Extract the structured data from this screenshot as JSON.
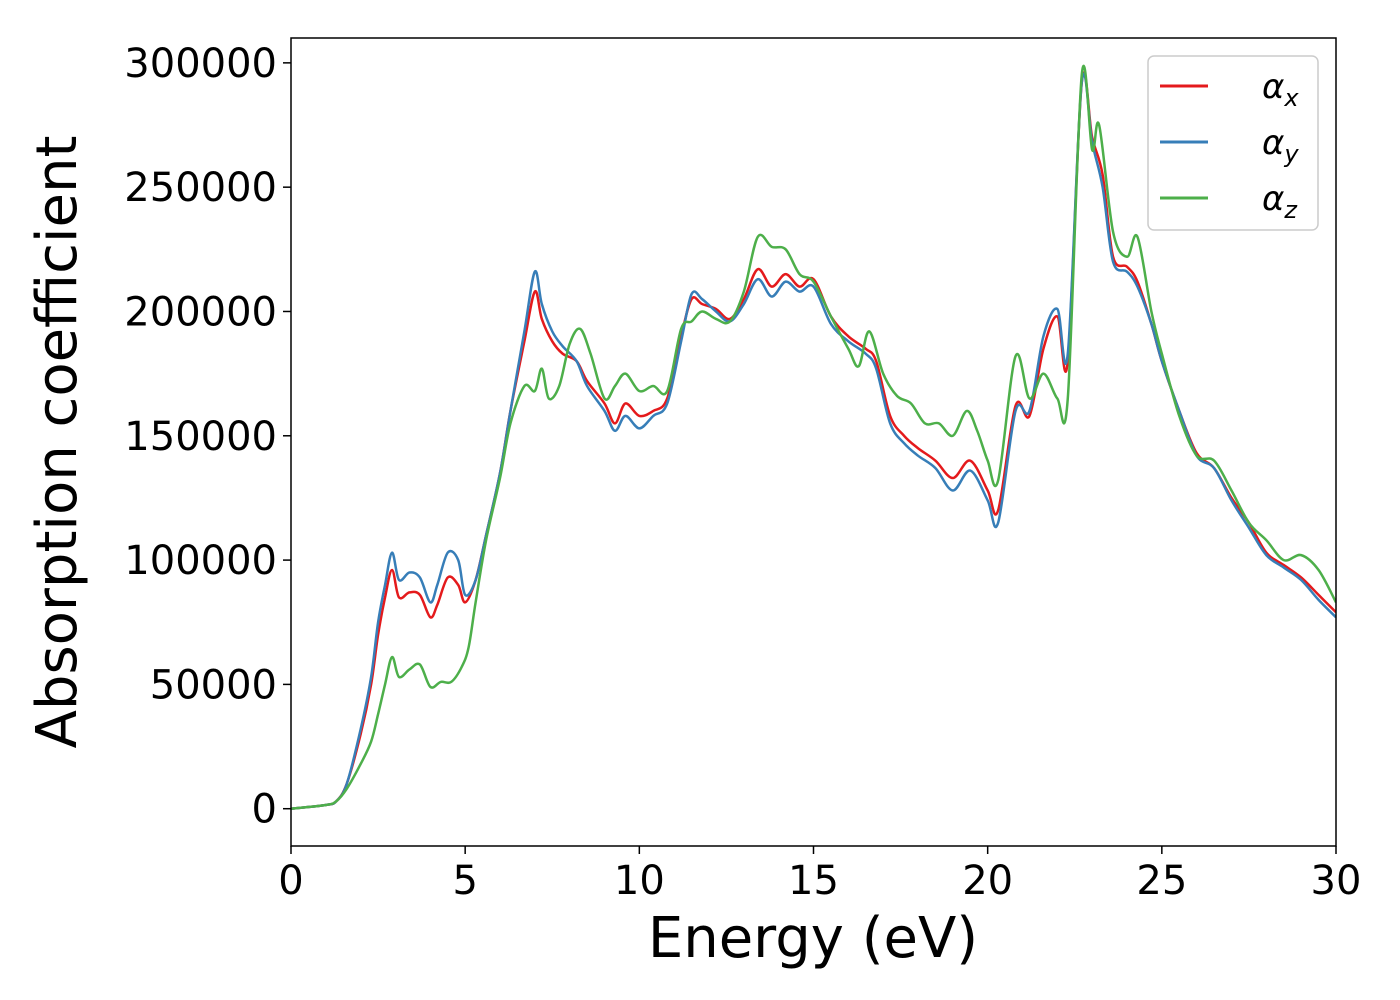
{
  "chart_data": {
    "type": "line",
    "title": "",
    "xlabel": "Energy (eV)",
    "ylabel": "Absorption coefficient",
    "xlim": [
      0,
      30
    ],
    "ylim": [
      -15000,
      310000
    ],
    "xticks": [
      0,
      5,
      10,
      15,
      20,
      25,
      30
    ],
    "yticks": [
      0,
      50000,
      100000,
      150000,
      200000,
      250000,
      300000
    ],
    "grid": false,
    "legend_position": "top-right",
    "series": [
      {
        "name": "αx",
        "symbol": "α",
        "subscript": "x",
        "color": "#e41a1c",
        "points": [
          [
            0,
            0
          ],
          [
            1,
            1500
          ],
          [
            1.3,
            3000
          ],
          [
            1.6,
            10000
          ],
          [
            2,
            30000
          ],
          [
            2.3,
            50000
          ],
          [
            2.5,
            70000
          ],
          [
            2.7,
            85000
          ],
          [
            2.9,
            96000
          ],
          [
            3.1,
            85000
          ],
          [
            3.4,
            87000
          ],
          [
            3.7,
            86000
          ],
          [
            4,
            77000
          ],
          [
            4.2,
            82000
          ],
          [
            4.5,
            93000
          ],
          [
            4.8,
            90000
          ],
          [
            5,
            83000
          ],
          [
            5.3,
            92000
          ],
          [
            5.6,
            110000
          ],
          [
            6,
            135000
          ],
          [
            6.3,
            160000
          ],
          [
            6.7,
            188000
          ],
          [
            7,
            208000
          ],
          [
            7.2,
            197000
          ],
          [
            7.5,
            188000
          ],
          [
            7.8,
            183000
          ],
          [
            8.2,
            180000
          ],
          [
            8.5,
            172000
          ],
          [
            9,
            163000
          ],
          [
            9.3,
            155000
          ],
          [
            9.6,
            163000
          ],
          [
            10,
            158000
          ],
          [
            10.4,
            160000
          ],
          [
            10.8,
            165000
          ],
          [
            11.2,
            190000
          ],
          [
            11.5,
            205000
          ],
          [
            11.8,
            203000
          ],
          [
            12.2,
            201000
          ],
          [
            12.6,
            197000
          ],
          [
            13,
            205000
          ],
          [
            13.4,
            217000
          ],
          [
            13.8,
            210000
          ],
          [
            14.2,
            215000
          ],
          [
            14.6,
            210000
          ],
          [
            15,
            213000
          ],
          [
            15.5,
            198000
          ],
          [
            16,
            190000
          ],
          [
            16.5,
            185000
          ],
          [
            16.8,
            180000
          ],
          [
            17.2,
            158000
          ],
          [
            17.6,
            150000
          ],
          [
            18,
            145000
          ],
          [
            18.5,
            140000
          ],
          [
            19,
            133000
          ],
          [
            19.5,
            140000
          ],
          [
            20,
            128000
          ],
          [
            20.3,
            120000
          ],
          [
            20.8,
            162000
          ],
          [
            21.2,
            158000
          ],
          [
            21.6,
            185000
          ],
          [
            22,
            198000
          ],
          [
            22.3,
            180000
          ],
          [
            22.7,
            292000
          ],
          [
            23,
            270000
          ],
          [
            23.3,
            255000
          ],
          [
            23.6,
            222000
          ],
          [
            24,
            218000
          ],
          [
            24.3,
            212000
          ],
          [
            24.7,
            195000
          ],
          [
            25,
            180000
          ],
          [
            25.5,
            160000
          ],
          [
            26,
            143000
          ],
          [
            26.5,
            137000
          ],
          [
            27,
            125000
          ],
          [
            27.5,
            115000
          ],
          [
            28,
            103000
          ],
          [
            28.5,
            98000
          ],
          [
            29,
            93000
          ],
          [
            29.5,
            86000
          ],
          [
            30,
            79000
          ]
        ]
      },
      {
        "name": "αy",
        "symbol": "α",
        "subscript": "y",
        "color": "#377eb8",
        "points": [
          [
            0,
            0
          ],
          [
            1,
            1500
          ],
          [
            1.3,
            3000
          ],
          [
            1.6,
            10000
          ],
          [
            2,
            32000
          ],
          [
            2.3,
            53000
          ],
          [
            2.5,
            75000
          ],
          [
            2.7,
            90000
          ],
          [
            2.9,
            103000
          ],
          [
            3.1,
            92000
          ],
          [
            3.4,
            95000
          ],
          [
            3.7,
            93000
          ],
          [
            4,
            83000
          ],
          [
            4.2,
            90000
          ],
          [
            4.5,
            103000
          ],
          [
            4.8,
            100000
          ],
          [
            5,
            86000
          ],
          [
            5.3,
            92000
          ],
          [
            5.6,
            110000
          ],
          [
            6,
            135000
          ],
          [
            6.3,
            160000
          ],
          [
            6.7,
            192000
          ],
          [
            7,
            216000
          ],
          [
            7.2,
            203000
          ],
          [
            7.5,
            192000
          ],
          [
            7.8,
            186000
          ],
          [
            8.2,
            180000
          ],
          [
            8.5,
            170000
          ],
          [
            9,
            160000
          ],
          [
            9.3,
            152000
          ],
          [
            9.6,
            158000
          ],
          [
            10,
            153000
          ],
          [
            10.4,
            158000
          ],
          [
            10.8,
            163000
          ],
          [
            11.2,
            188000
          ],
          [
            11.5,
            207000
          ],
          [
            11.8,
            205000
          ],
          [
            12.2,
            200000
          ],
          [
            12.6,
            196000
          ],
          [
            13,
            203000
          ],
          [
            13.4,
            213000
          ],
          [
            13.8,
            206000
          ],
          [
            14.2,
            212000
          ],
          [
            14.6,
            208000
          ],
          [
            15,
            210000
          ],
          [
            15.5,
            195000
          ],
          [
            16,
            188000
          ],
          [
            16.5,
            183000
          ],
          [
            16.8,
            177000
          ],
          [
            17.2,
            155000
          ],
          [
            17.6,
            147000
          ],
          [
            18,
            142000
          ],
          [
            18.5,
            137000
          ],
          [
            19,
            128000
          ],
          [
            19.5,
            136000
          ],
          [
            20,
            124000
          ],
          [
            20.3,
            115000
          ],
          [
            20.8,
            160000
          ],
          [
            21.2,
            160000
          ],
          [
            21.6,
            190000
          ],
          [
            22,
            201000
          ],
          [
            22.3,
            183000
          ],
          [
            22.7,
            292000
          ],
          [
            23,
            268000
          ],
          [
            23.3,
            250000
          ],
          [
            23.6,
            220000
          ],
          [
            24,
            216000
          ],
          [
            24.3,
            210000
          ],
          [
            24.7,
            195000
          ],
          [
            25,
            180000
          ],
          [
            25.5,
            160000
          ],
          [
            26,
            142000
          ],
          [
            26.5,
            137000
          ],
          [
            27,
            124000
          ],
          [
            27.5,
            113000
          ],
          [
            28,
            102000
          ],
          [
            28.5,
            97000
          ],
          [
            29,
            92000
          ],
          [
            29.5,
            84000
          ],
          [
            30,
            77000
          ]
        ]
      },
      {
        "name": "αz",
        "symbol": "α",
        "subscript": "z",
        "color": "#4daf4a",
        "points": [
          [
            0,
            0
          ],
          [
            1,
            1500
          ],
          [
            1.3,
            3000
          ],
          [
            1.6,
            8000
          ],
          [
            2,
            18000
          ],
          [
            2.3,
            27000
          ],
          [
            2.5,
            38000
          ],
          [
            2.7,
            50000
          ],
          [
            2.9,
            61000
          ],
          [
            3.1,
            53000
          ],
          [
            3.4,
            56000
          ],
          [
            3.7,
            58000
          ],
          [
            4,
            49000
          ],
          [
            4.3,
            51000
          ],
          [
            4.6,
            51000
          ],
          [
            4.9,
            57000
          ],
          [
            5.1,
            65000
          ],
          [
            5.3,
            83000
          ],
          [
            5.6,
            108000
          ],
          [
            6,
            133000
          ],
          [
            6.3,
            155000
          ],
          [
            6.7,
            170000
          ],
          [
            7,
            168000
          ],
          [
            7.2,
            177000
          ],
          [
            7.4,
            165000
          ],
          [
            7.7,
            170000
          ],
          [
            8,
            187000
          ],
          [
            8.3,
            193000
          ],
          [
            8.6,
            183000
          ],
          [
            9,
            165000
          ],
          [
            9.3,
            170000
          ],
          [
            9.6,
            175000
          ],
          [
            10,
            168000
          ],
          [
            10.4,
            170000
          ],
          [
            10.8,
            168000
          ],
          [
            11.2,
            193000
          ],
          [
            11.5,
            196000
          ],
          [
            11.8,
            200000
          ],
          [
            12.2,
            197000
          ],
          [
            12.6,
            196000
          ],
          [
            13,
            208000
          ],
          [
            13.4,
            230000
          ],
          [
            13.8,
            226000
          ],
          [
            14.2,
            225000
          ],
          [
            14.6,
            215000
          ],
          [
            15,
            212000
          ],
          [
            15.5,
            198000
          ],
          [
            16,
            185000
          ],
          [
            16.3,
            178000
          ],
          [
            16.6,
            192000
          ],
          [
            17,
            175000
          ],
          [
            17.4,
            166000
          ],
          [
            17.8,
            163000
          ],
          [
            18.2,
            155000
          ],
          [
            18.6,
            155000
          ],
          [
            19,
            150000
          ],
          [
            19.4,
            160000
          ],
          [
            19.7,
            152000
          ],
          [
            20,
            140000
          ],
          [
            20.3,
            132000
          ],
          [
            20.8,
            182000
          ],
          [
            21.2,
            165000
          ],
          [
            21.6,
            175000
          ],
          [
            22,
            165000
          ],
          [
            22.3,
            165000
          ],
          [
            22.7,
            295000
          ],
          [
            23,
            265000
          ],
          [
            23.2,
            275000
          ],
          [
            23.6,
            232000
          ],
          [
            24,
            222000
          ],
          [
            24.3,
            230000
          ],
          [
            24.7,
            200000
          ],
          [
            25,
            183000
          ],
          [
            25.5,
            158000
          ],
          [
            26,
            142000
          ],
          [
            26.5,
            140000
          ],
          [
            27,
            128000
          ],
          [
            27.5,
            115000
          ],
          [
            28,
            108000
          ],
          [
            28.5,
            100000
          ],
          [
            29,
            102000
          ],
          [
            29.5,
            96000
          ],
          [
            30,
            83000
          ]
        ]
      }
    ]
  }
}
